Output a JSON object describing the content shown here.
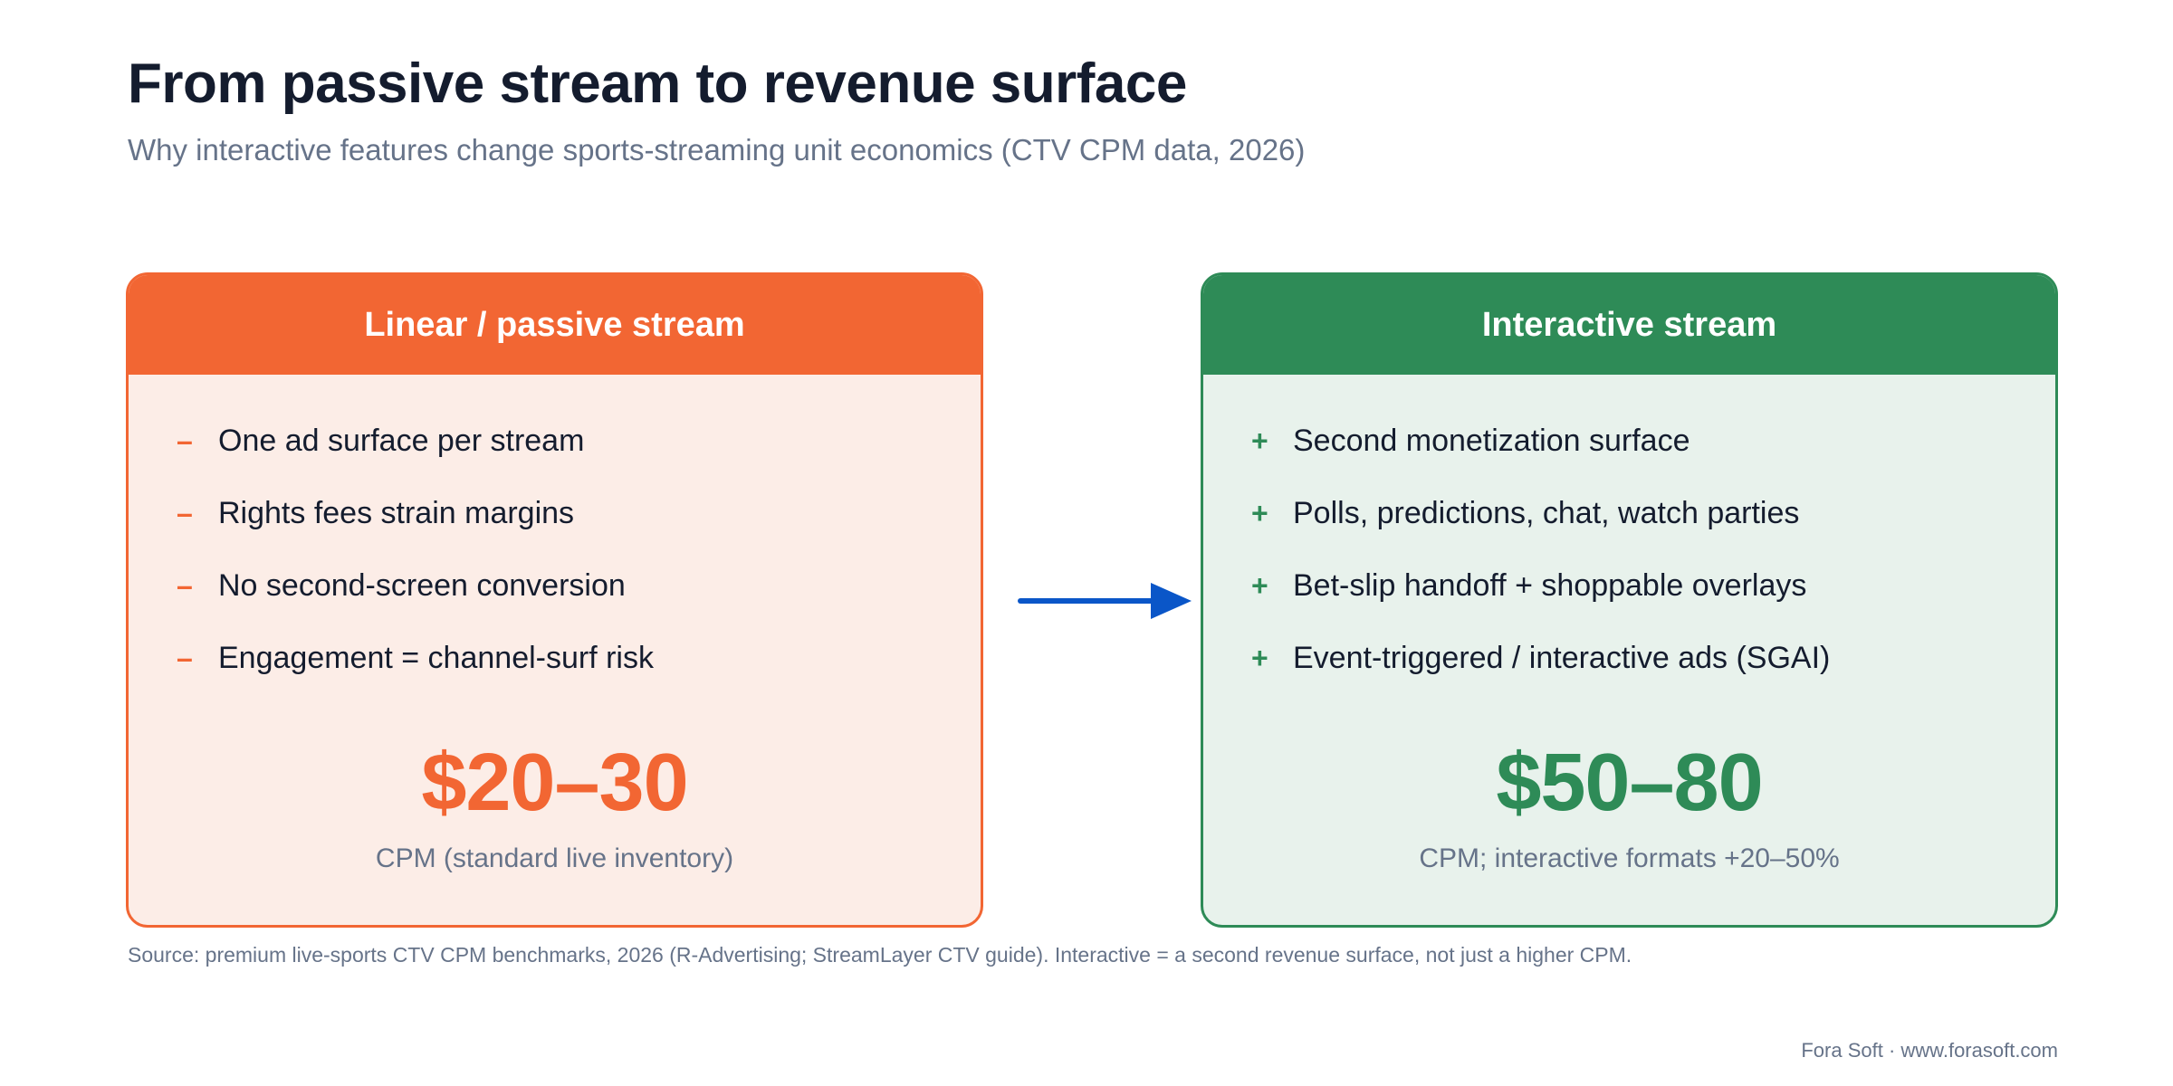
{
  "title": "From passive stream to revenue surface",
  "subtitle": "Why interactive features change sports-streaming unit economics (CTV CPM data, 2026)",
  "colors": {
    "passive_accent": "#f26633",
    "passive_bg": "#fcede7",
    "interactive_accent": "#2e8b57",
    "interactive_bg": "#e8f2ec",
    "arrow": "#0a56c8",
    "title": "#141c2e",
    "muted": "#667389"
  },
  "passive": {
    "header": "Linear / passive stream",
    "marker": "–",
    "items": [
      "One ad surface per stream",
      "Rights fees strain margins",
      "No second-screen conversion",
      "Engagement = channel-surf risk"
    ],
    "cpm_value": "$20–30",
    "cpm_caption": "CPM (standard live inventory)"
  },
  "interactive": {
    "header": "Interactive stream",
    "marker": "+",
    "items": [
      "Second monetization surface",
      "Polls, predictions, chat, watch parties",
      "Bet-slip handoff + shoppable overlays",
      "Event-triggered / interactive ads (SGAI)"
    ],
    "cpm_value": "$50–80",
    "cpm_caption": "CPM; interactive formats +20–50%"
  },
  "arrow_icon": "arrow-right-icon",
  "source": "Source: premium live-sports CTV CPM benchmarks, 2026 (R-Advertising; StreamLayer CTV guide). Interactive = a second revenue surface, not just a higher CPM.",
  "footer": "Fora Soft · www.forasoft.com"
}
